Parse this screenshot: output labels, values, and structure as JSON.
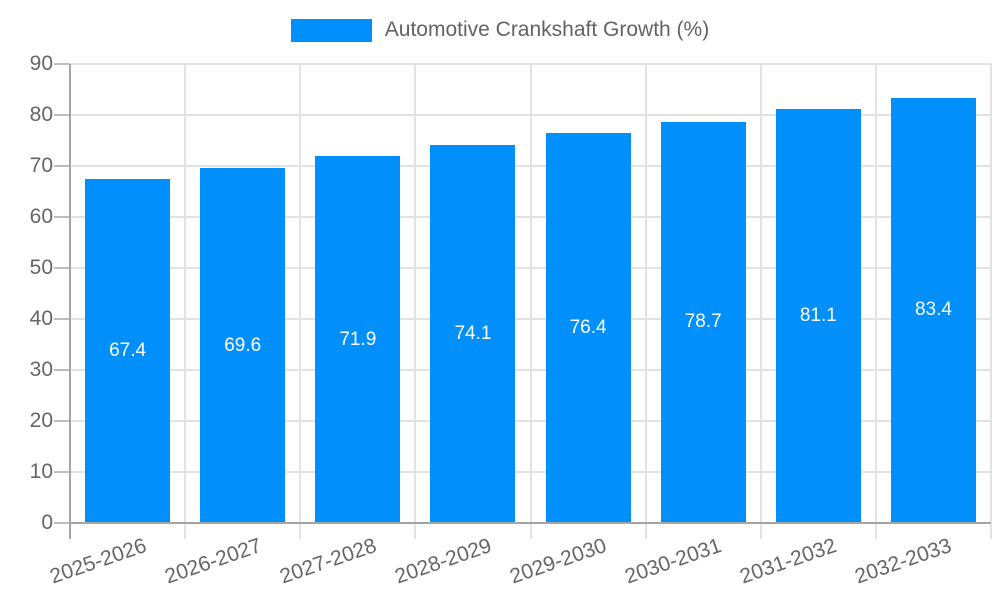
{
  "chart_data": {
    "type": "bar",
    "title": "Automotive Crankshaft Growth (%)",
    "categories": [
      "2025-2026",
      "2026-2027",
      "2027-2028",
      "2028-2029",
      "2029-2030",
      "2030-2031",
      "2031-2032",
      "2032-2033"
    ],
    "values": [
      67.4,
      69.6,
      71.9,
      74.1,
      76.4,
      78.7,
      81.1,
      83.4
    ],
    "value_labels": [
      "67.4",
      "69.6",
      "71.9",
      "74.1",
      "76.4",
      "78.7",
      "81.1",
      "83.4"
    ],
    "xlabel": "",
    "ylabel": "",
    "ylim": [
      0,
      90
    ],
    "y_ticks": [
      "0",
      "10",
      "20",
      "30",
      "40",
      "50",
      "60",
      "70",
      "80",
      "90"
    ],
    "grid": "on",
    "legend_position": "top-center",
    "x_label_rotation_deg": -19,
    "colors": {
      "bar": "#008FFB",
      "grid_line": "#e3e3e3",
      "axis_line": "#a5a5a5",
      "tick_text": "#666666",
      "legend_text": "#636363",
      "data_label_text": "#ffffff",
      "background": "#ffffff"
    }
  }
}
